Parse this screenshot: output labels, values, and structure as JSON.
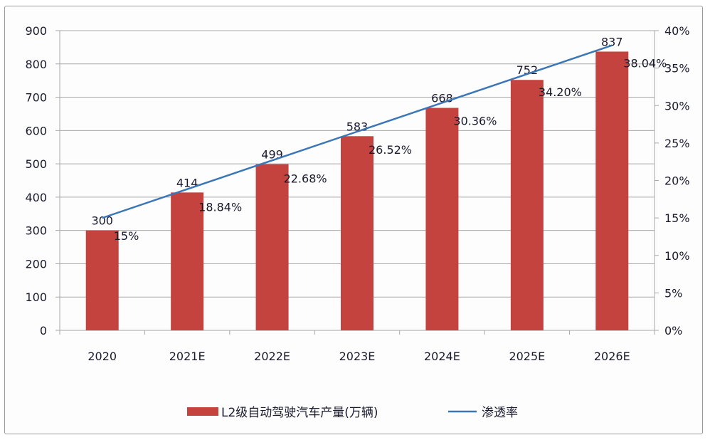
{
  "chart_data": {
    "type": "bar+line",
    "categories": [
      "2020",
      "2021E",
      "2022E",
      "2023E",
      "2024E",
      "2025E",
      "2026E"
    ],
    "series": [
      {
        "name": "L2级自动驾驶汽车产量(万辆)",
        "type": "bar",
        "axis": "left",
        "color": "#c4433e",
        "values": [
          300,
          414,
          499,
          583,
          668,
          752,
          837
        ],
        "labels": [
          "300",
          "414",
          "499",
          "583",
          "668",
          "752",
          "837"
        ]
      },
      {
        "name": "渗透率",
        "type": "line",
        "axis": "right",
        "color": "#3b76b6",
        "values": [
          15,
          18.84,
          22.68,
          26.52,
          30.36,
          34.2,
          38.04
        ],
        "labels": [
          "15%",
          "18.84%",
          "22.68%",
          "26.52%",
          "30.36%",
          "34.20%",
          "38.04%"
        ]
      }
    ],
    "y_left": {
      "range": [
        0,
        900
      ],
      "ticks": [
        "0",
        "100",
        "200",
        "300",
        "400",
        "500",
        "600",
        "700",
        "800",
        "900"
      ]
    },
    "y_right": {
      "range": [
        0,
        40
      ],
      "ticks": [
        "0%",
        "5%",
        "10%",
        "15%",
        "20%",
        "25%",
        "30%",
        "35%",
        "40%"
      ]
    },
    "grid": true,
    "legend": "bottom"
  }
}
